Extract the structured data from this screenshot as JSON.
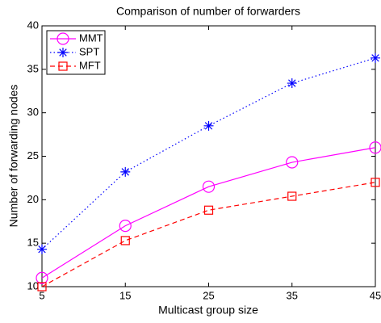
{
  "chart_data": {
    "type": "line",
    "title": "Comparison of number of forwarders",
    "xlabel": "Multicast group size",
    "ylabel": "Number of forwarding nodes",
    "x": [
      5,
      15,
      25,
      35,
      45
    ],
    "series": [
      {
        "name": "MMT",
        "color": "#ff00ff",
        "linestyle": "solid",
        "marker": "o",
        "values": [
          11.0,
          17.0,
          21.5,
          24.3,
          26.0
        ]
      },
      {
        "name": "SPT",
        "color": "#0000ff",
        "linestyle": "dotted",
        "marker": "*",
        "values": [
          14.3,
          23.2,
          28.5,
          33.4,
          36.3
        ]
      },
      {
        "name": "MFT",
        "color": "#ff0000",
        "linestyle": "dashed",
        "marker": "s",
        "values": [
          10.0,
          15.3,
          18.8,
          20.4,
          22.0
        ]
      }
    ],
    "xlim": [
      5,
      45
    ],
    "xticks": [
      5,
      15,
      25,
      35,
      45
    ],
    "ylim": [
      10,
      40
    ],
    "yticks": [
      10,
      15,
      20,
      25,
      30,
      35,
      40
    ],
    "grid": false,
    "legend": "upper left"
  }
}
